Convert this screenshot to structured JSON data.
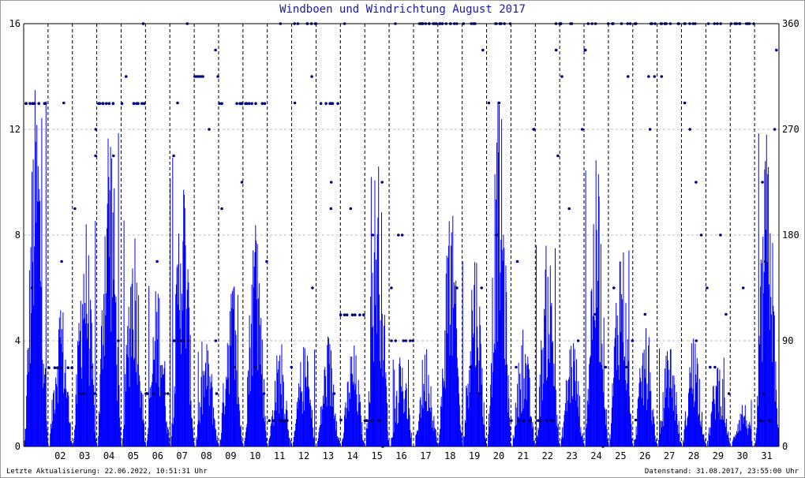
{
  "title": "Windboen und Windrichtung August 2017",
  "footer": {
    "left": "Letzte Aktualisierung: 22.06.2022, 10:51:31 Uhr",
    "right": "Datenstand: 31.08.2017, 23:55:00 Uhr"
  },
  "colors": {
    "gust": "#0000ff",
    "direction": "#000080",
    "grid": "#000000",
    "minorgrid": "#bdbdbd"
  },
  "chart_data": {
    "type": "bar",
    "title": "Windboen und Windrichtung August 2017",
    "x_tick_labels": [
      "02",
      "03",
      "04",
      "05",
      "06",
      "07",
      "08",
      "09",
      "10",
      "11",
      "12",
      "13",
      "14",
      "15",
      "16",
      "17",
      "18",
      "19",
      "20",
      "21",
      "22",
      "23",
      "24",
      "25",
      "26",
      "27",
      "28",
      "29",
      "30",
      "31"
    ],
    "ylim_left": [
      0,
      16
    ],
    "ylim_right": [
      0,
      360
    ],
    "y_ticks_left": [
      "0",
      "4",
      "8",
      "12",
      "16"
    ],
    "y_ticks_right": [
      "0",
      "90",
      "180",
      "270",
      "360"
    ],
    "grid": true,
    "series": [
      {
        "style": "bars",
        "axis": "left",
        "daily_peak_gust": [
          14.0,
          5.8,
          9.0,
          13.7,
          9.0,
          6.5,
          11.2,
          4.0,
          6.5,
          9.0,
          4.0,
          3.9,
          4.2,
          4.0,
          11.5,
          3.4,
          4.0,
          9.5,
          8.0,
          13.4,
          4.5,
          8.0,
          4.5,
          10.9,
          8.5,
          4.5,
          4.2,
          4.5,
          3.5,
          1.8,
          12.1
        ]
      },
      {
        "style": "points",
        "axis": "right",
        "daily_dominant_direction": [
          292,
          67,
          45,
          292,
          292,
          45,
          90,
          315,
          292,
          292,
          22,
          360,
          292,
          112,
          22,
          90,
          360,
          360,
          360,
          360,
          22,
          22,
          360,
          360,
          360,
          360,
          360,
          360,
          360,
          360,
          22
        ]
      }
    ]
  }
}
